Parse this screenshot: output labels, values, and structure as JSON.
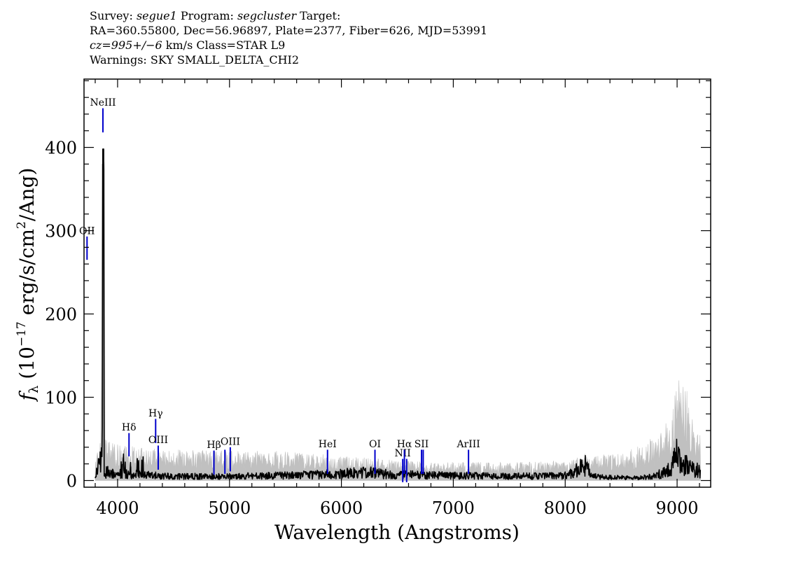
{
  "header": {
    "line1": {
      "survey_label": "Survey: ",
      "survey": "segue1",
      "program_label": " Program: ",
      "program": "segcluster",
      "target_label": " Target:"
    },
    "line2": "RA=360.55800, Dec=56.96897, Plate=2377, Fiber=626, MJD=53991",
    "line3": {
      "cz": "cz=995+/−6",
      "rest": " km/s Class=STAR L9"
    },
    "line4": "Warnings: SKY SMALL_DELTA_CHI2"
  },
  "chart_data": {
    "type": "line",
    "xlabel": "Wavelength (Angstroms)",
    "ylabel_parts": {
      "f": "f",
      "lambda": "λ",
      "open": " (10",
      "exp": "−17",
      "mid": " erg/s/cm",
      "sq": "2",
      "close": "/Ang)"
    },
    "xlim": [
      3700,
      9300
    ],
    "ylim": [
      -8,
      482
    ],
    "xticks": [
      4000,
      5000,
      6000,
      7000,
      8000,
      9000
    ],
    "xtick_labels": [
      "4000",
      "5000",
      "6000",
      "7000",
      "8000",
      "9000"
    ],
    "yticks": [
      0,
      100,
      200,
      300,
      400
    ],
    "ytick_labels": [
      "0",
      "100",
      "200",
      "300",
      "400"
    ],
    "spectrum_range": [
      3800,
      9210
    ],
    "series": [
      {
        "role": "error",
        "color": "#c0c0c0",
        "anchors": [
          [
            3800,
            25
          ],
          [
            3850,
            45
          ],
          [
            3870,
            400
          ],
          [
            3885,
            45
          ],
          [
            4000,
            42
          ],
          [
            4500,
            34
          ],
          [
            5000,
            33
          ],
          [
            5500,
            32
          ],
          [
            6000,
            27
          ],
          [
            6500,
            22
          ],
          [
            7000,
            20
          ],
          [
            7500,
            20
          ],
          [
            8000,
            22
          ],
          [
            8200,
            32
          ],
          [
            8300,
            28
          ],
          [
            8500,
            30
          ],
          [
            8800,
            48
          ],
          [
            8950,
            70
          ],
          [
            9000,
            110
          ],
          [
            9050,
            120
          ],
          [
            9120,
            80
          ],
          [
            9210,
            50
          ]
        ]
      },
      {
        "role": "flux",
        "color": "#000000",
        "anchors": [
          [
            3800,
            2
          ],
          [
            3860,
            30
          ],
          [
            3872,
            398
          ],
          [
            3880,
            8
          ],
          [
            4000,
            8
          ],
          [
            4500,
            5
          ],
          [
            5000,
            5
          ],
          [
            5500,
            6
          ],
          [
            6000,
            8
          ],
          [
            6200,
            10
          ],
          [
            6500,
            7
          ],
          [
            7000,
            6
          ],
          [
            7500,
            5
          ],
          [
            8000,
            6
          ],
          [
            8180,
            18
          ],
          [
            8240,
            5
          ],
          [
            8400,
            4
          ],
          [
            8600,
            3
          ],
          [
            8800,
            5
          ],
          [
            8950,
            15
          ],
          [
            9000,
            30
          ],
          [
            9050,
            20
          ],
          [
            9120,
            15
          ],
          [
            9210,
            12
          ]
        ]
      }
    ],
    "line_markers": [
      {
        "label": "NeIII",
        "x": 3869,
        "y0": 418,
        "y1": 447,
        "label_y": 450
      },
      {
        "label": "OII",
        "x": 3727,
        "y0": 265,
        "y1": 293,
        "label_y": 296
      },
      {
        "label": "Hδ",
        "x": 4102,
        "y0": 29,
        "y1": 57,
        "label_y": 60
      },
      {
        "label": "Hγ",
        "x": 4340,
        "y0": 45,
        "y1": 74,
        "label_y": 77
      },
      {
        "label": "OIII",
        "x": 4363,
        "y0": 13,
        "y1": 42,
        "label_y": 45
      },
      {
        "label": "Hβ",
        "x": 4861,
        "y0": 7,
        "y1": 36,
        "label_y": 39
      },
      {
        "label": "OIII",
        "x": 4959,
        "y0": 8,
        "y1": 37,
        "label_y": null
      },
      {
        "label": "OIII",
        "x": 5007,
        "y0": 11,
        "y1": 40,
        "label_y": 43
      },
      {
        "label": "HeI",
        "x": 5876,
        "y0": 8,
        "y1": 37,
        "label_y": 40
      },
      {
        "label": "OI",
        "x": 6300,
        "y0": 8,
        "y1": 37,
        "label_y": 40
      },
      {
        "label": "NII",
        "x": 6548,
        "y0": -2,
        "y1": 26,
        "label_y": 29
      },
      {
        "label": "Hα",
        "x": 6563,
        "y0": 8,
        "y1": 37,
        "label_y": 40
      },
      {
        "label": "NII",
        "x": 6583,
        "y0": -2,
        "y1": 26,
        "label_y": null
      },
      {
        "label": "SII",
        "x": 6716,
        "y0": 8,
        "y1": 37,
        "label_y": 40
      },
      {
        "label": "SII",
        "x": 6731,
        "y0": 8,
        "y1": 37,
        "label_y": null
      },
      {
        "label": "ArIII",
        "x": 7136,
        "y0": 8,
        "y1": 37,
        "label_y": 40
      }
    ],
    "marker_color": "#0000cc",
    "grid": false
  }
}
